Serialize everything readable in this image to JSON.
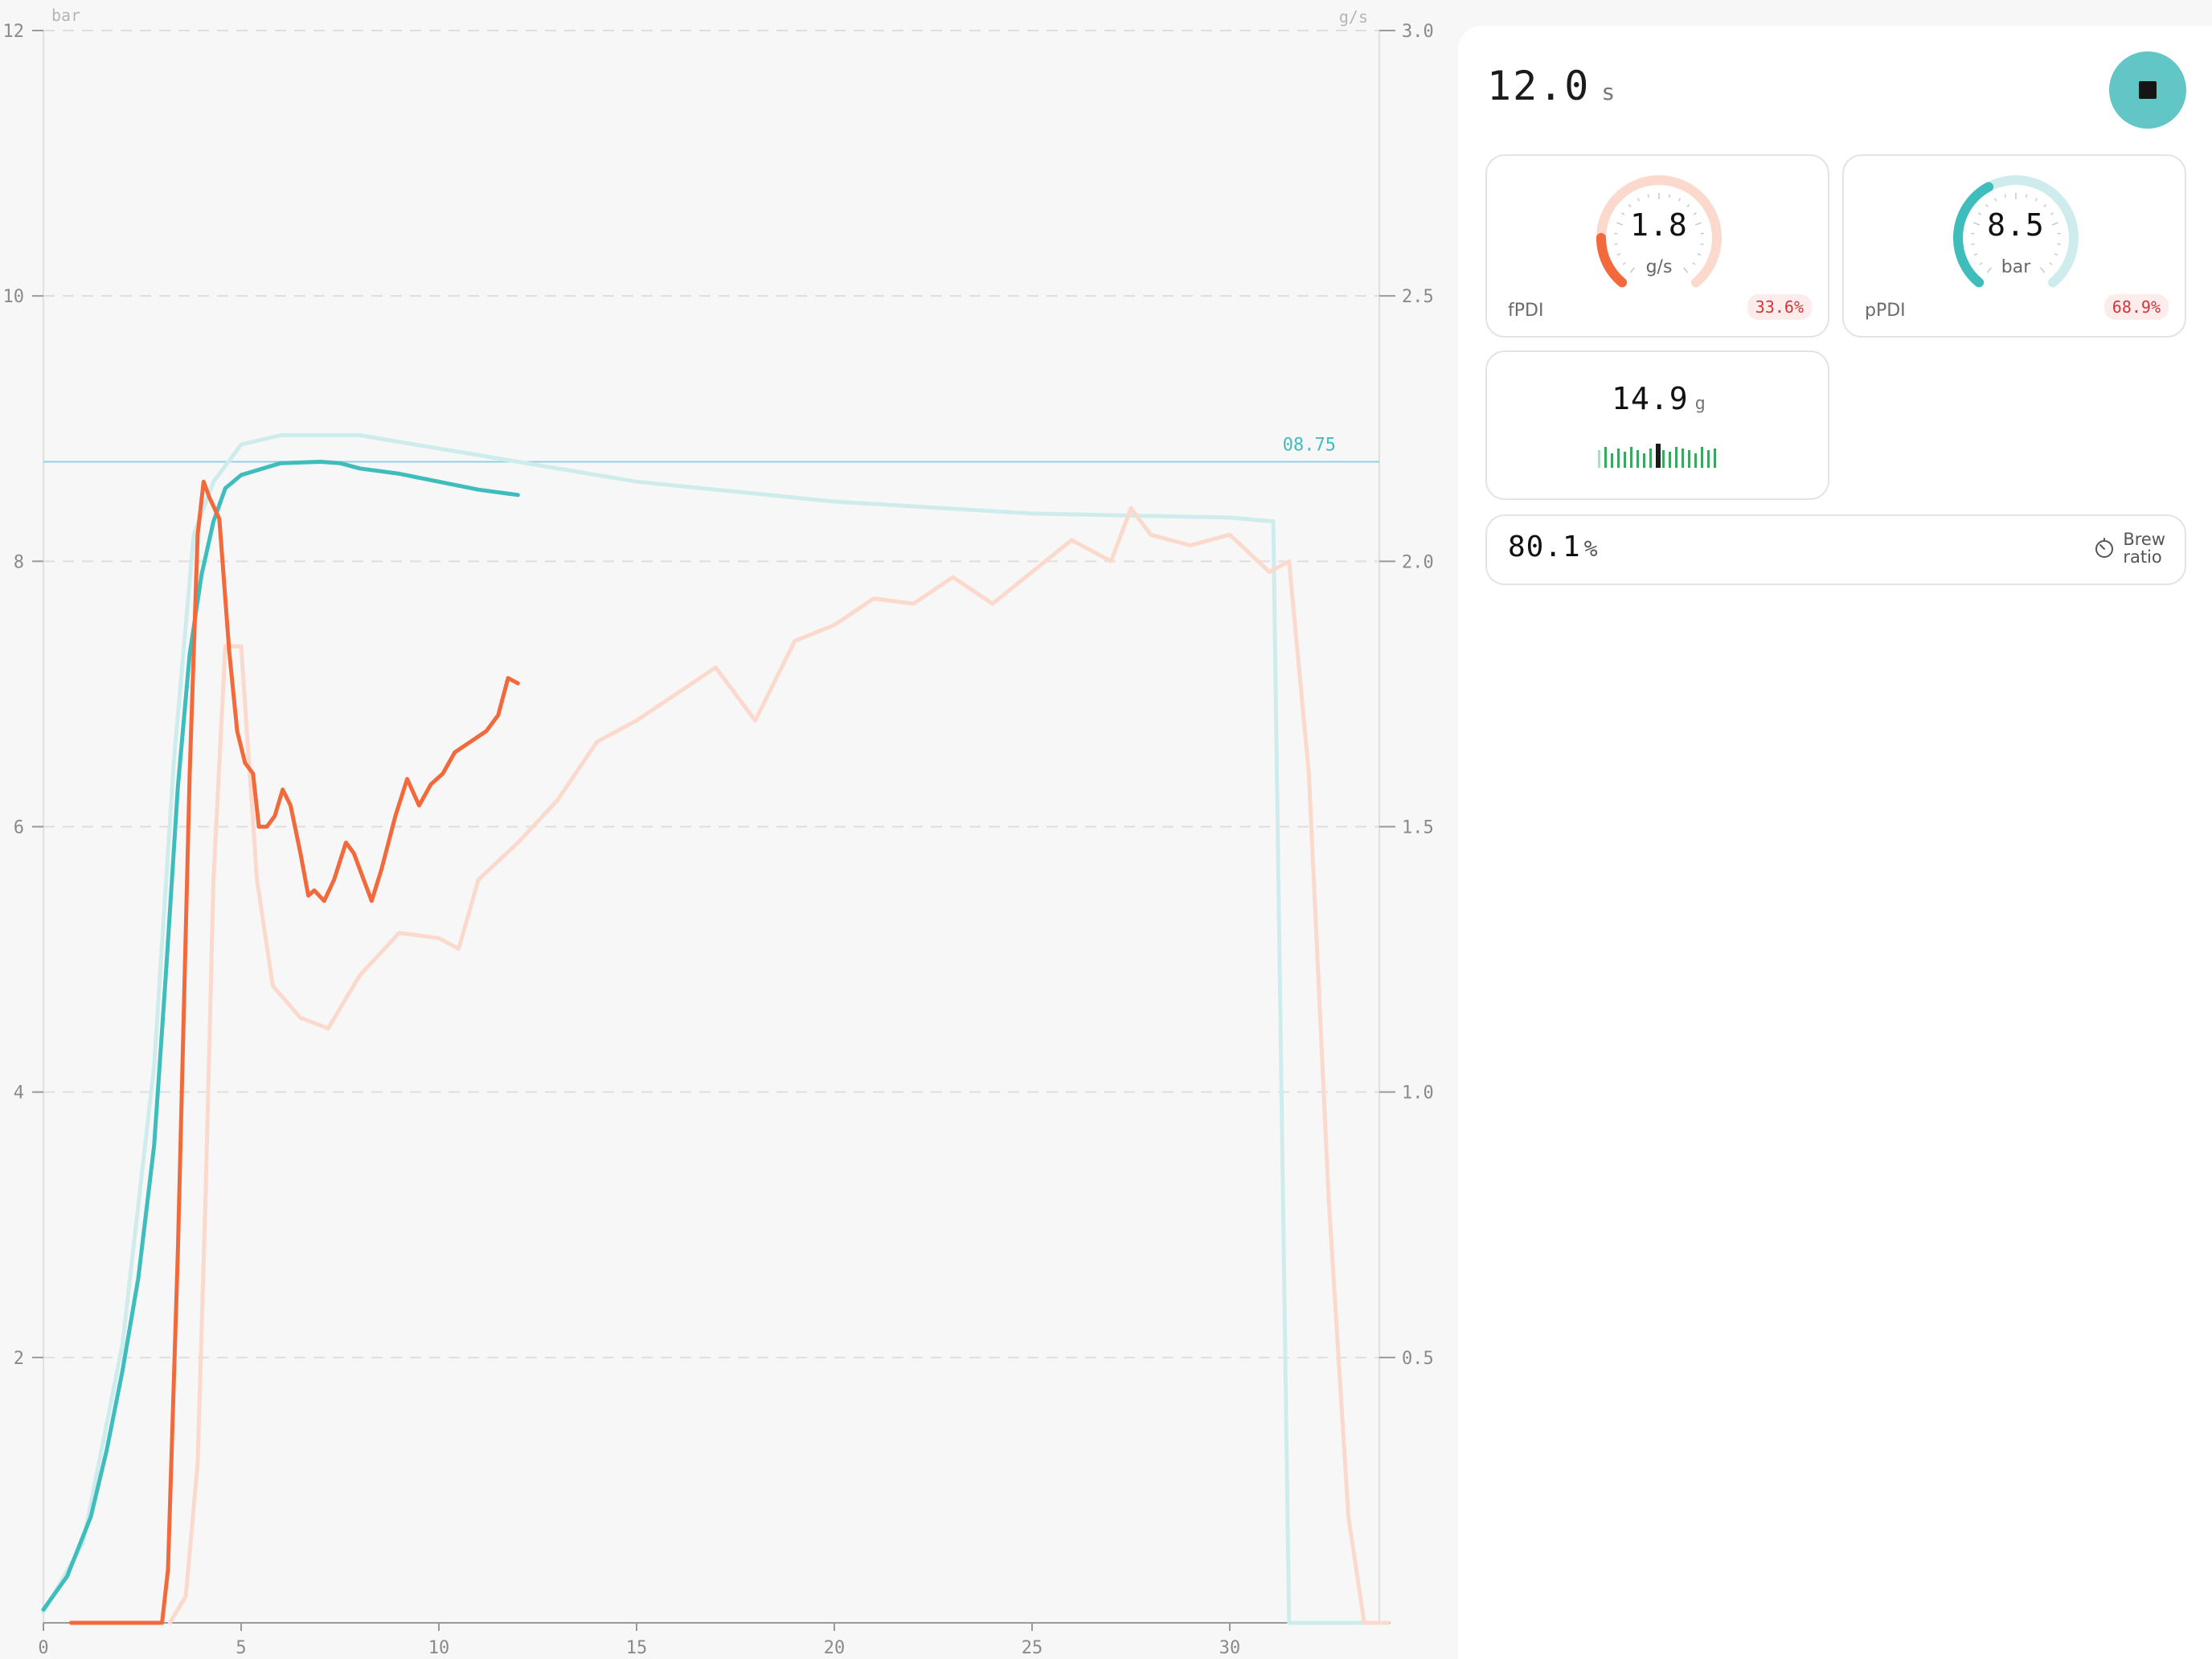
{
  "colors": {
    "pressure_color": "#3fbdbd",
    "flow_color": "#f26a3c",
    "pressure_ghost": "#cfecec",
    "flow_ghost": "#fbd9cc",
    "target_line": "#8fd4dc",
    "accent": "#62c6c6",
    "badge_red": "#d1363a",
    "weight_bar": "#3aa860"
  },
  "chart_data": {
    "type": "line",
    "left_axis": {
      "unit_label": "bar",
      "ticks": [
        "12",
        "10",
        "8",
        "6",
        "4",
        "2"
      ],
      "range": [
        0,
        12
      ]
    },
    "right_axis": {
      "unit_label": "g/s",
      "ticks": [
        "3.0",
        "2.5",
        "2.0",
        "1.5",
        "1.0",
        "0.5"
      ],
      "range": [
        0,
        3.0
      ]
    },
    "x_axis": {
      "ticks": [
        "0",
        "5",
        "10",
        "15",
        "20",
        "25",
        "30"
      ],
      "range": [
        0,
        34
      ]
    },
    "grid": true,
    "target_pressure": {
      "value": 8.75,
      "label": "08.75"
    },
    "series": [
      {
        "id": "pressure-live",
        "axis": "left",
        "style": "live",
        "points": [
          [
            0,
            0.1
          ],
          [
            0.6,
            0.35
          ],
          [
            1.2,
            0.8
          ],
          [
            1.6,
            1.3
          ],
          [
            2,
            1.9
          ],
          [
            2.4,
            2.6
          ],
          [
            2.8,
            3.6
          ],
          [
            3.1,
            4.9
          ],
          [
            3.4,
            6.3
          ],
          [
            3.7,
            7.3
          ],
          [
            4,
            7.9
          ],
          [
            4.3,
            8.3
          ],
          [
            4.6,
            8.55
          ],
          [
            5,
            8.65
          ],
          [
            6,
            8.74
          ],
          [
            7,
            8.75
          ],
          [
            7.5,
            8.74
          ],
          [
            8,
            8.7
          ],
          [
            9,
            8.66
          ],
          [
            10,
            8.6
          ],
          [
            11,
            8.54
          ],
          [
            12,
            8.5
          ]
        ]
      },
      {
        "id": "flow-live",
        "axis": "right",
        "style": "live",
        "points": [
          [
            0.7,
            0
          ],
          [
            3.0,
            0
          ],
          [
            3.15,
            0.1
          ],
          [
            3.4,
            0.7
          ],
          [
            3.7,
            1.6
          ],
          [
            3.9,
            2.05
          ],
          [
            4.05,
            2.15
          ],
          [
            4.2,
            2.12
          ],
          [
            4.45,
            2.08
          ],
          [
            4.7,
            1.83
          ],
          [
            4.9,
            1.68
          ],
          [
            5.1,
            1.62
          ],
          [
            5.3,
            1.6
          ],
          [
            5.45,
            1.5
          ],
          [
            5.65,
            1.5
          ],
          [
            5.85,
            1.52
          ],
          [
            6.05,
            1.57
          ],
          [
            6.25,
            1.54
          ],
          [
            6.5,
            1.45
          ],
          [
            6.7,
            1.37
          ],
          [
            6.85,
            1.38
          ],
          [
            7.1,
            1.36
          ],
          [
            7.35,
            1.4
          ],
          [
            7.65,
            1.47
          ],
          [
            7.85,
            1.45
          ],
          [
            8.1,
            1.4
          ],
          [
            8.3,
            1.36
          ],
          [
            8.55,
            1.42
          ],
          [
            8.9,
            1.52
          ],
          [
            9.2,
            1.59
          ],
          [
            9.5,
            1.54
          ],
          [
            9.8,
            1.58
          ],
          [
            10.1,
            1.6
          ],
          [
            10.4,
            1.64
          ],
          [
            10.8,
            1.66
          ],
          [
            11.2,
            1.68
          ],
          [
            11.5,
            1.71
          ],
          [
            11.75,
            1.78
          ],
          [
            12,
            1.77
          ]
        ]
      },
      {
        "id": "pressure-reference",
        "axis": "left",
        "style": "ghost",
        "points": [
          [
            0,
            0.08
          ],
          [
            1,
            0.6
          ],
          [
            2,
            2.1
          ],
          [
            2.8,
            4.2
          ],
          [
            3.3,
            6.5
          ],
          [
            3.8,
            8.2
          ],
          [
            4.3,
            8.6
          ],
          [
            5,
            8.88
          ],
          [
            6,
            8.95
          ],
          [
            8,
            8.95
          ],
          [
            10,
            8.85
          ],
          [
            12,
            8.75
          ],
          [
            15,
            8.6
          ],
          [
            20,
            8.45
          ],
          [
            25,
            8.36
          ],
          [
            30,
            8.33
          ],
          [
            31.1,
            8.3
          ],
          [
            31.5,
            0
          ],
          [
            34,
            0
          ]
        ]
      },
      {
        "id": "flow-reference",
        "axis": "right",
        "style": "ghost",
        "points": [
          [
            3.2,
            0
          ],
          [
            3.6,
            0.05
          ],
          [
            3.9,
            0.3
          ],
          [
            4.1,
            0.8
          ],
          [
            4.3,
            1.4
          ],
          [
            4.6,
            1.84
          ],
          [
            5,
            1.84
          ],
          [
            5.4,
            1.4
          ],
          [
            5.8,
            1.2
          ],
          [
            6.5,
            1.14
          ],
          [
            7.2,
            1.12
          ],
          [
            8,
            1.22
          ],
          [
            9,
            1.3
          ],
          [
            10,
            1.29
          ],
          [
            10.5,
            1.27
          ],
          [
            11,
            1.4
          ],
          [
            12,
            1.47
          ],
          [
            13,
            1.55
          ],
          [
            14,
            1.66
          ],
          [
            15,
            1.7
          ],
          [
            16,
            1.75
          ],
          [
            17,
            1.8
          ],
          [
            18,
            1.7
          ],
          [
            19,
            1.85
          ],
          [
            20,
            1.88
          ],
          [
            21,
            1.93
          ],
          [
            22,
            1.92
          ],
          [
            23,
            1.97
          ],
          [
            24,
            1.92
          ],
          [
            25,
            1.98
          ],
          [
            26,
            2.04
          ],
          [
            27,
            2.0
          ],
          [
            27.5,
            2.1
          ],
          [
            28,
            2.05
          ],
          [
            29,
            2.03
          ],
          [
            30,
            2.05
          ],
          [
            31,
            1.98
          ],
          [
            31.5,
            2.0
          ],
          [
            32,
            1.6
          ],
          [
            32.5,
            0.8
          ],
          [
            33,
            0.2
          ],
          [
            33.4,
            0
          ],
          [
            34,
            0
          ]
        ]
      }
    ]
  },
  "header": {
    "timer_value": "12.0",
    "timer_unit": "s"
  },
  "flow_card": {
    "value": "1.8",
    "unit": "g/s",
    "label": "fPDI",
    "badge": "33.6%",
    "gauge_fraction": 0.18
  },
  "pressure_card": {
    "value": "8.5",
    "unit": "bar",
    "label": "pPDI",
    "badge": "68.9%",
    "gauge_fraction": 0.4
  },
  "weight_card": {
    "value": "14.9",
    "unit": "g"
  },
  "ratio_card": {
    "value": "80.1",
    "unit": "%",
    "label_line1": "Brew",
    "label_line2": "ratio"
  }
}
